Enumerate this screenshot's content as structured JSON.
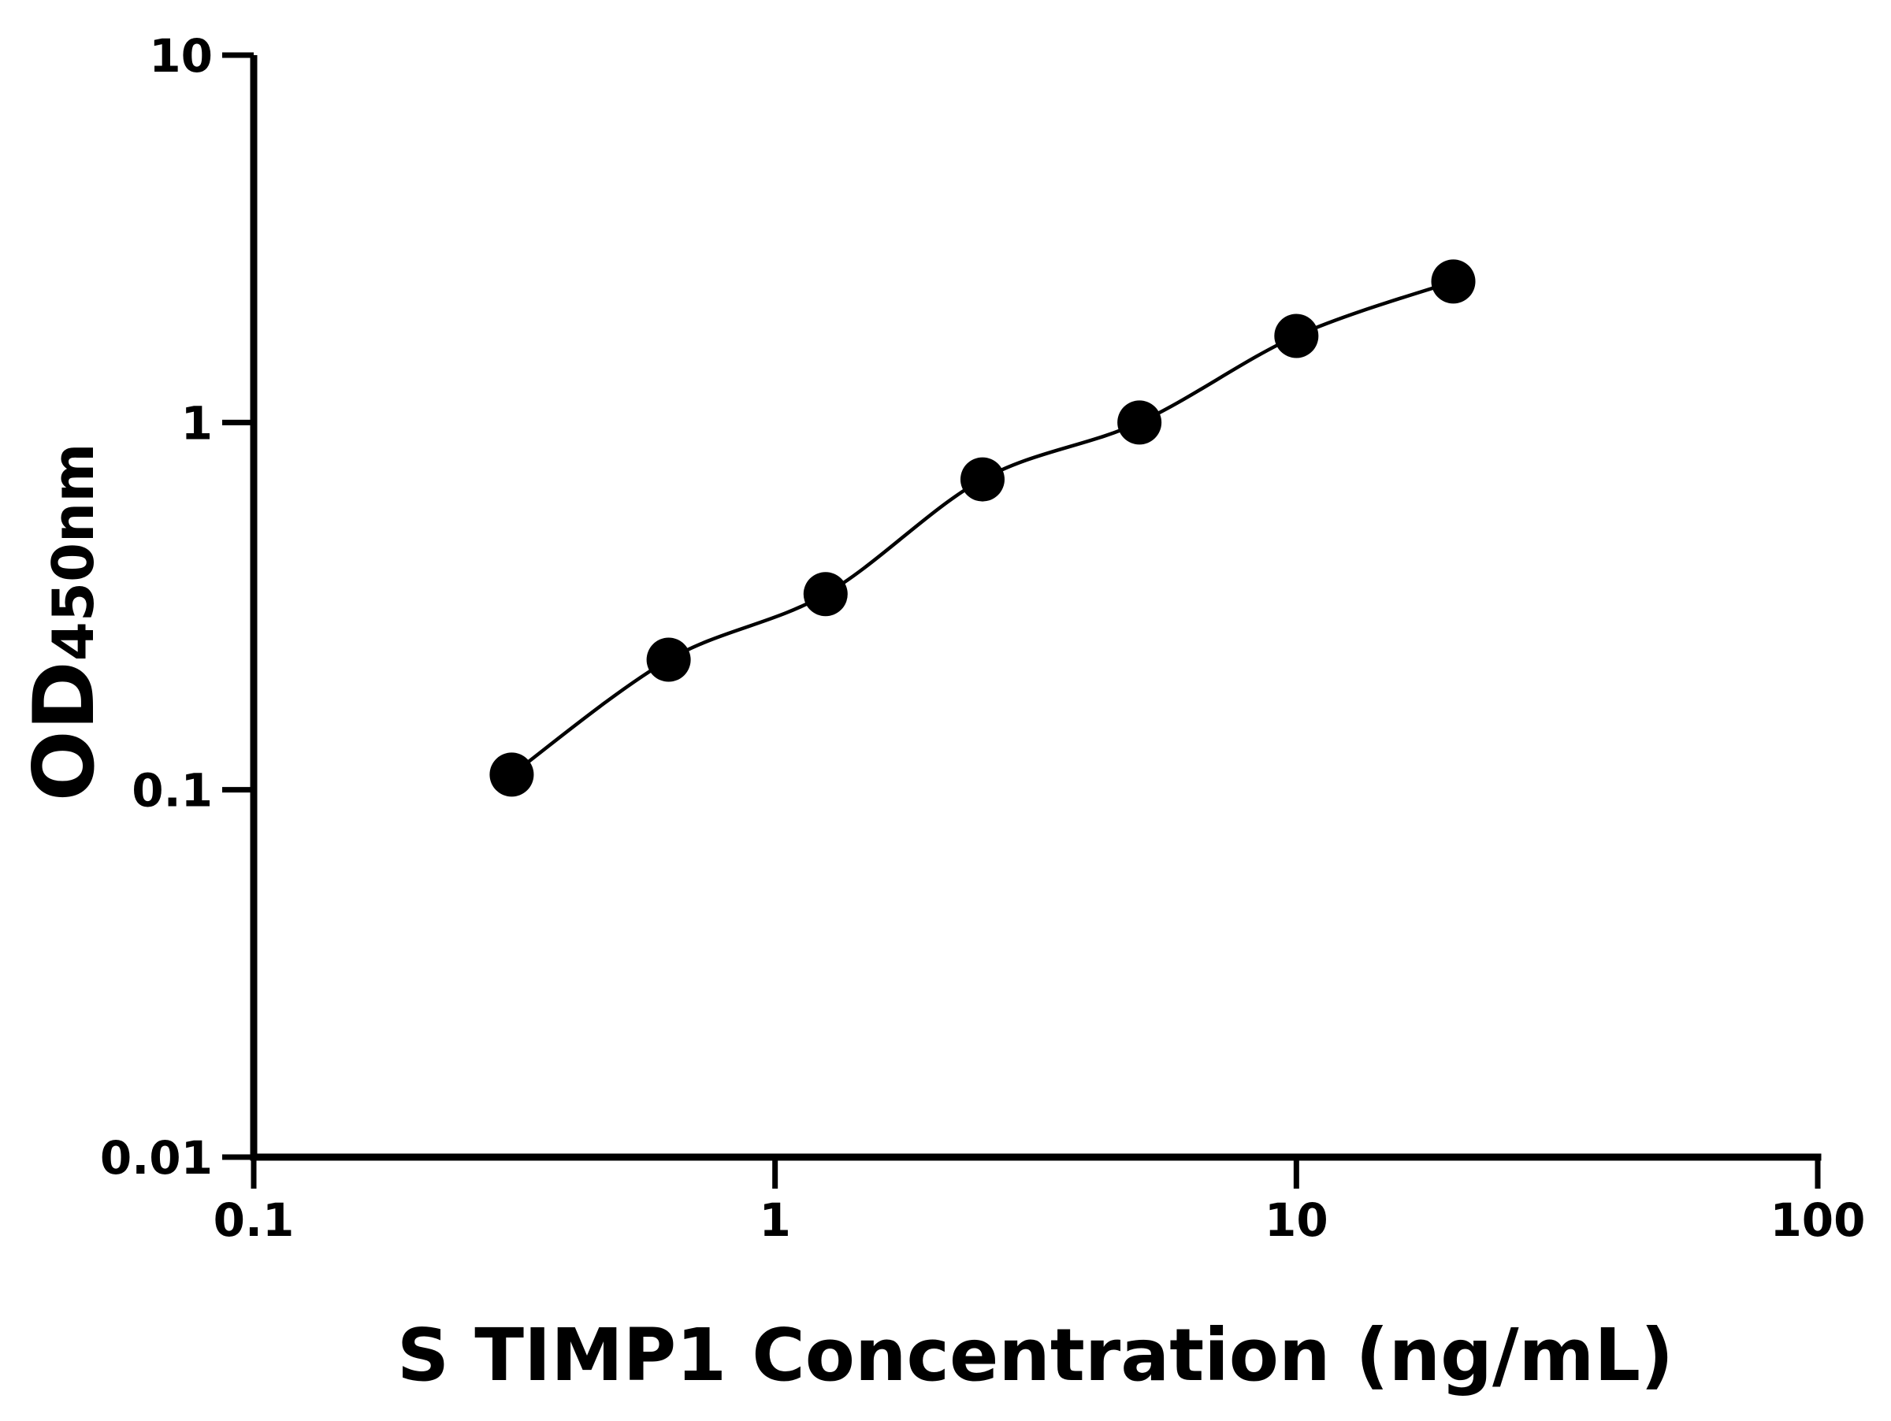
{
  "chart_data": {
    "type": "scatter",
    "x_label": "S TIMP1 Concentration (ng/mL)",
    "y_label": "OD",
    "y_label_sub": "450nm",
    "x": [
      0.3125,
      0.625,
      1.25,
      2.5,
      5,
      10,
      20
    ],
    "y": [
      0.11,
      0.226,
      0.341,
      0.7,
      1.0,
      1.72,
      2.42
    ],
    "color": "#000000",
    "fit_line": true,
    "log_x": true,
    "log_y": true,
    "xlim": [
      0.1,
      100
    ],
    "xticks": [
      0.1,
      1,
      10,
      100
    ],
    "ylim": [
      0.01,
      10
    ],
    "yticks": [
      0.01,
      0.1,
      1,
      10
    ],
    "grid": false
  }
}
